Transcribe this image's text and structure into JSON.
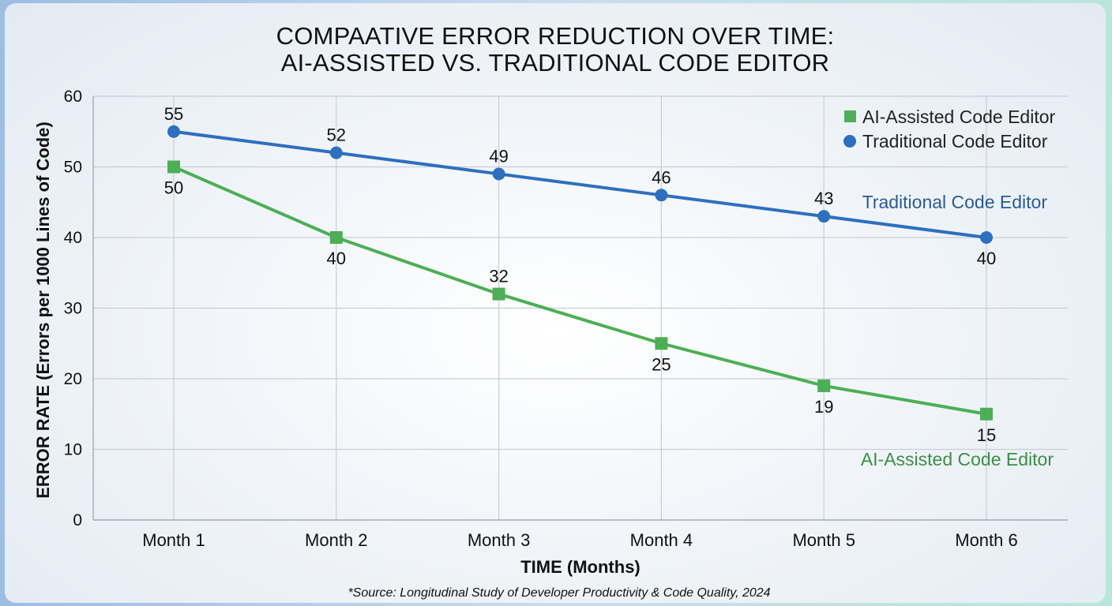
{
  "chart_data": {
    "type": "line",
    "title_lines": [
      "COMPAATIVE ERROR REDUCTION OVER TIME:",
      "AI-ASSISTED VS. TRADITIONAL CODE EDITOR"
    ],
    "xlabel": "TIME (Months)",
    "ylabel": "ERROR RATE (Errors per 1000 Lines of Code)",
    "categories": [
      "Month 1",
      "Month 2",
      "Month 3",
      "Month 4",
      "Month 5",
      "Month 6"
    ],
    "ylim": [
      0,
      60
    ],
    "yticks": [
      0,
      10,
      20,
      30,
      40,
      50,
      60
    ],
    "grid": true,
    "legend_position": "top-right",
    "series": [
      {
        "name": "AI-Assisted Code Editor",
        "values": [
          50,
          40,
          32,
          25,
          19,
          15
        ],
        "color": "#4caf55",
        "marker": "square",
        "label_positions": [
          "below",
          "below",
          "above",
          "below",
          "below",
          "below"
        ]
      },
      {
        "name": "Traditional Code Editor",
        "values": [
          55,
          52,
          49,
          46,
          43,
          40
        ],
        "color": "#2e6fbf",
        "marker": "circle",
        "label_positions": [
          "above",
          "above",
          "above",
          "above",
          "above",
          "below"
        ]
      }
    ],
    "series_end_labels": {
      "traditional": {
        "text": "Traditional Code Editor",
        "color": "#2a5b94"
      },
      "ai": {
        "text": "AI-Assisted Code Editor",
        "color": "#3a8f44"
      }
    },
    "source": "*Source: Longitudinal Study of Developer Productivity & Code Quality, 2024"
  }
}
